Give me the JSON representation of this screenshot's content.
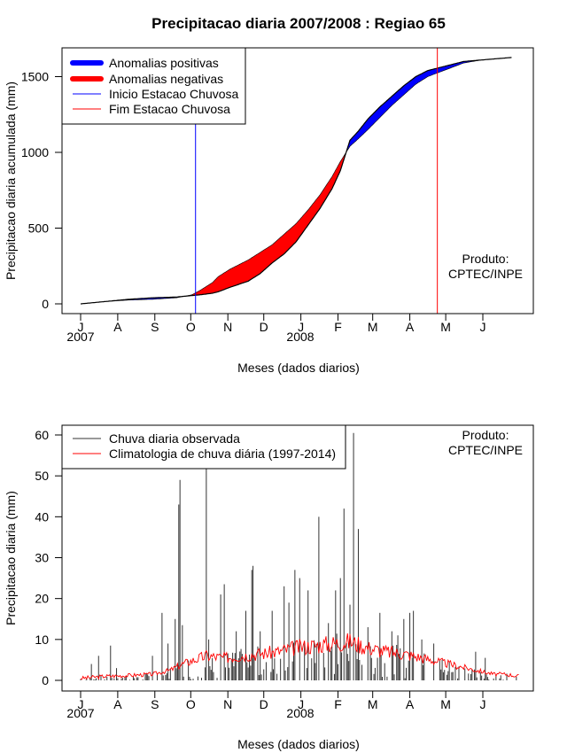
{
  "chart_data": [
    {
      "type": "area",
      "title": "Precipitacao diaria 2007/2008 : Regiao 65",
      "xlabel": "Meses (dados diarios)",
      "ylabel": "Precipitacao diaria acumulada (mm)",
      "ylim": [
        0,
        1650
      ],
      "yticks": [
        0,
        500,
        1000,
        1500
      ],
      "month_labels": [
        "J",
        "A",
        "S",
        "O",
        "N",
        "D",
        "J",
        "F",
        "M",
        "A",
        "M",
        "J"
      ],
      "year_labels": [
        "2007",
        "2008"
      ],
      "legend": {
        "position": "top-left",
        "items": [
          "Anomalias positivas",
          "Anomalias negativas",
          "Inicio Estacao Chuvosa",
          "Fim Estacao Chuvosa"
        ]
      },
      "colors": {
        "positive": "#0000ff",
        "negative": "#ff0000",
        "onset": "#0000ff",
        "end": "#ff0000",
        "line": "#000000"
      },
      "onset_day": 96,
      "end_day": 298,
      "months_days": [
        0,
        31,
        62,
        92,
        123,
        153,
        184,
        215,
        244,
        275,
        305,
        336,
        366
      ],
      "observed_cumulative_x": [
        0,
        20,
        40,
        60,
        80,
        93,
        100,
        110,
        115,
        125,
        140,
        150,
        160,
        170,
        180,
        190,
        200,
        210,
        217,
        225,
        232,
        240,
        250,
        260,
        270,
        280,
        290,
        300,
        310,
        320,
        335,
        350,
        366
      ],
      "observed_cumulative_y": [
        0,
        15,
        30,
        40,
        45,
        55,
        60,
        70,
        80,
        110,
        150,
        200,
        270,
        330,
        410,
        520,
        630,
        760,
        880,
        1080,
        1140,
        1220,
        1300,
        1370,
        1440,
        1500,
        1540,
        1560,
        1580,
        1600,
        1610,
        1620,
        1630
      ],
      "climatology_cumulative_x": [
        0,
        20,
        40,
        60,
        80,
        93,
        100,
        110,
        115,
        125,
        140,
        150,
        160,
        170,
        180,
        190,
        200,
        210,
        217,
        225,
        232,
        240,
        250,
        260,
        270,
        280,
        290,
        300,
        310,
        320,
        335,
        350,
        366
      ],
      "climatology_cumulative_y": [
        0,
        15,
        25,
        30,
        40,
        60,
        90,
        140,
        180,
        230,
        290,
        340,
        390,
        460,
        530,
        620,
        720,
        840,
        940,
        1040,
        1090,
        1150,
        1230,
        1310,
        1380,
        1450,
        1500,
        1530,
        1560,
        1590,
        1610,
        1620,
        1630
      ],
      "annotation": {
        "label": "Produto:",
        "value": "CPTEC/INPE"
      }
    },
    {
      "type": "line",
      "title": "",
      "xlabel": "Meses (dados diarios)",
      "ylabel": "Precipitacao diaria (mm)",
      "ylim": [
        0,
        62
      ],
      "yticks": [
        0,
        10,
        20,
        30,
        40,
        50,
        60
      ],
      "month_labels": [
        "J",
        "A",
        "S",
        "O",
        "N",
        "D",
        "J",
        "F",
        "M",
        "A",
        "M",
        "J"
      ],
      "year_labels": [
        "2007",
        "2008"
      ],
      "legend": {
        "position": "top-left",
        "items": [
          "Chuva diaria observada",
          "Climatologia de chuva diária (1997-2014)"
        ]
      },
      "colors": {
        "observed": "#333333",
        "climatology": "#ff0000"
      },
      "months_days": [
        0,
        31,
        62,
        92,
        123,
        153,
        184,
        215,
        244,
        275,
        305,
        336,
        366
      ],
      "observed_peaks": [
        {
          "day": 9,
          "value": 4
        },
        {
          "day": 15,
          "value": 6
        },
        {
          "day": 25,
          "value": 8.5
        },
        {
          "day": 30,
          "value": 3
        },
        {
          "day": 60,
          "value": 6
        },
        {
          "day": 68,
          "value": 16.5
        },
        {
          "day": 73,
          "value": 9
        },
        {
          "day": 79,
          "value": 15
        },
        {
          "day": 82,
          "value": 43
        },
        {
          "day": 83,
          "value": 49
        },
        {
          "day": 85,
          "value": 13.5
        },
        {
          "day": 105,
          "value": 55
        },
        {
          "day": 107,
          "value": 10
        },
        {
          "day": 117,
          "value": 21
        },
        {
          "day": 120,
          "value": 23.5
        },
        {
          "day": 130,
          "value": 12
        },
        {
          "day": 138,
          "value": 17
        },
        {
          "day": 143,
          "value": 27
        },
        {
          "day": 144,
          "value": 28
        },
        {
          "day": 150,
          "value": 12
        },
        {
          "day": 160,
          "value": 17
        },
        {
          "day": 170,
          "value": 23
        },
        {
          "day": 174,
          "value": 19
        },
        {
          "day": 179,
          "value": 27
        },
        {
          "day": 183,
          "value": 25
        },
        {
          "day": 190,
          "value": 22
        },
        {
          "day": 199,
          "value": 40
        },
        {
          "day": 207,
          "value": 14
        },
        {
          "day": 213,
          "value": 22
        },
        {
          "day": 217,
          "value": 25
        },
        {
          "day": 220,
          "value": 42
        },
        {
          "day": 225,
          "value": 18.5
        },
        {
          "day": 228,
          "value": 60.5
        },
        {
          "day": 232,
          "value": 37
        },
        {
          "day": 240,
          "value": 13
        },
        {
          "day": 250,
          "value": 16.5
        },
        {
          "day": 260,
          "value": 12
        },
        {
          "day": 265,
          "value": 11
        },
        {
          "day": 270,
          "value": 15
        },
        {
          "day": 275,
          "value": 16.5
        },
        {
          "day": 278,
          "value": 17
        },
        {
          "day": 285,
          "value": 10
        },
        {
          "day": 295,
          "value": 9
        },
        {
          "day": 300,
          "value": 5
        },
        {
          "day": 310,
          "value": 2
        },
        {
          "day": 330,
          "value": 7
        },
        {
          "day": 338,
          "value": 5.5
        }
      ],
      "climatology_x": [
        0,
        20,
        40,
        60,
        75,
        85,
        95,
        100,
        105,
        120,
        135,
        150,
        165,
        180,
        195,
        210,
        225,
        240,
        255,
        270,
        285,
        300,
        315,
        330,
        345,
        355,
        366
      ],
      "climatology_y": [
        0.5,
        1,
        1.2,
        1.5,
        2.5,
        4,
        5,
        5.5,
        6,
        5.5,
        6,
        6.5,
        7,
        8,
        8.5,
        9,
        9.5,
        8,
        7,
        6.5,
        5.5,
        4.5,
        3.5,
        2.5,
        1.5,
        1.5,
        1
      ],
      "annotation": {
        "label": "Produto:",
        "value": "CPTEC/INPE"
      }
    }
  ]
}
